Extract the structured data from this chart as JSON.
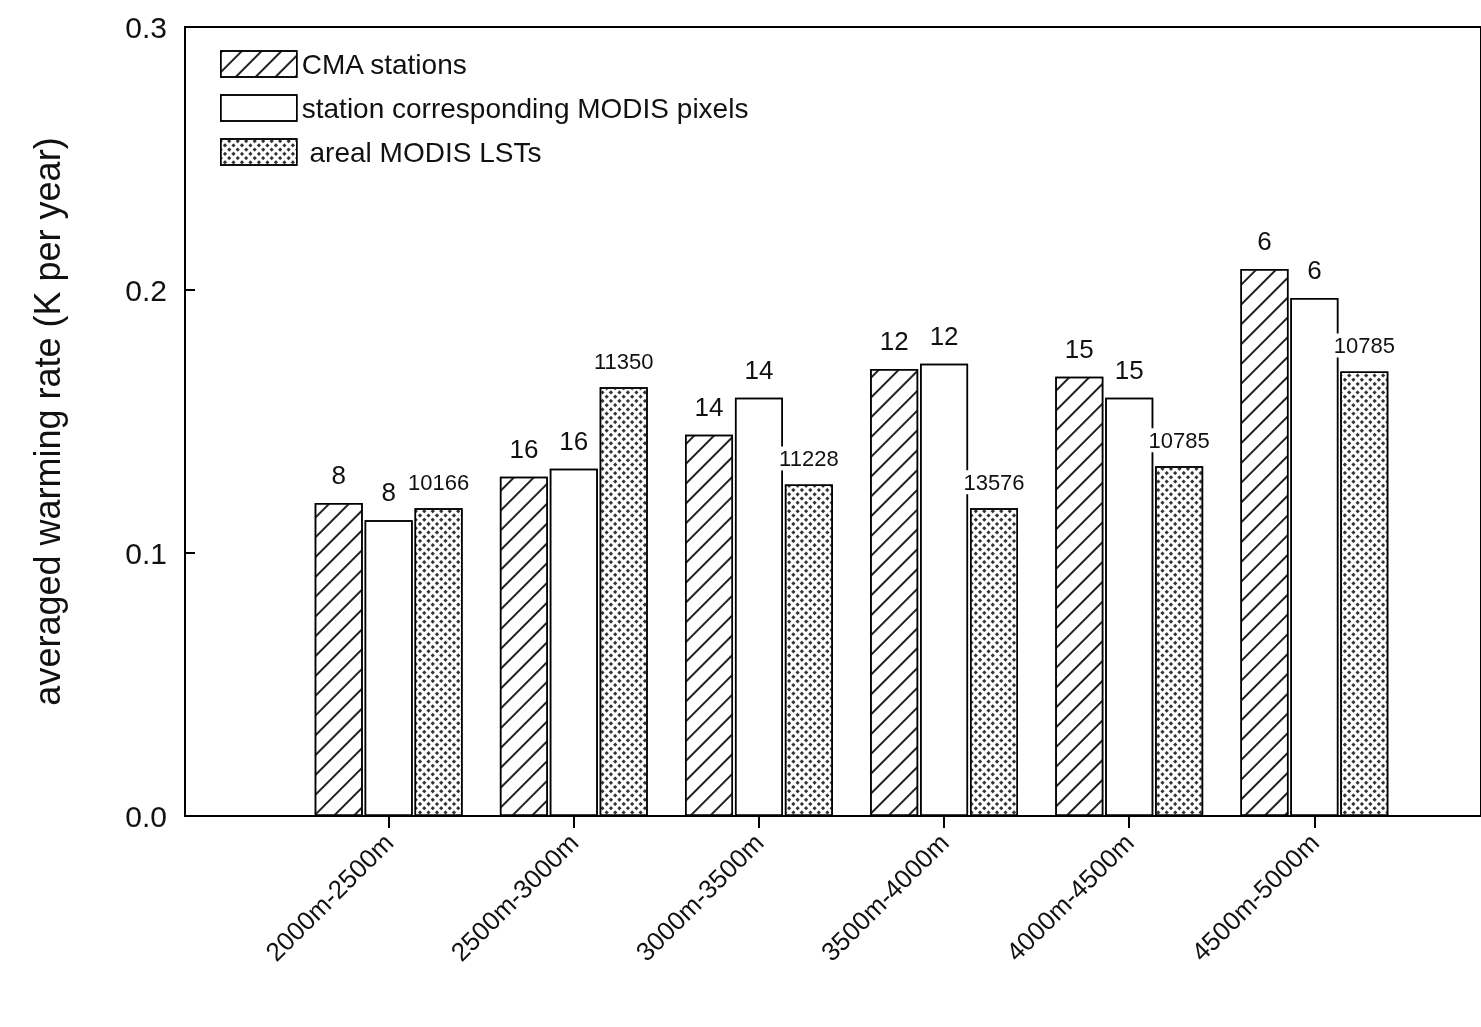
{
  "chart_data": {
    "type": "bar",
    "ylabel": "averaged warming rate (K per year)",
    "categories": [
      "2000m-2500m",
      "2500m-3000m",
      "3000m-3500m",
      "3500m-4000m",
      "4000m-4500m",
      "4500m-5000m"
    ],
    "series": [
      {
        "name": "CMA stations",
        "color": "#ffffff",
        "values": [
          0.119,
          0.129,
          0.145,
          0.17,
          0.167,
          0.208
        ]
      },
      {
        "name": "station corresponding MODIS pixels",
        "color": "#ffffff",
        "values": [
          0.1125,
          0.132,
          0.159,
          0.172,
          0.159,
          0.197
        ]
      },
      {
        "name": " areal MODIS LSTs",
        "color": "#ffffff",
        "values": [
          0.117,
          0.163,
          0.126,
          0.117,
          0.133,
          0.169
        ]
      }
    ],
    "annotations": [
      "8",
      "16",
      "14",
      "12",
      "15",
      "6",
      "8",
      "16",
      "14",
      "12",
      "15",
      "6",
      "10166",
      "11350",
      "11228",
      "13576",
      "10785",
      "10785"
    ],
    "ylim": [
      0,
      0.3
    ],
    "yticks": [
      {
        "value": 0,
        "label": "0.0"
      },
      0.1,
      0.2,
      0.3
    ],
    "grid": false,
    "legend": "top left"
  }
}
